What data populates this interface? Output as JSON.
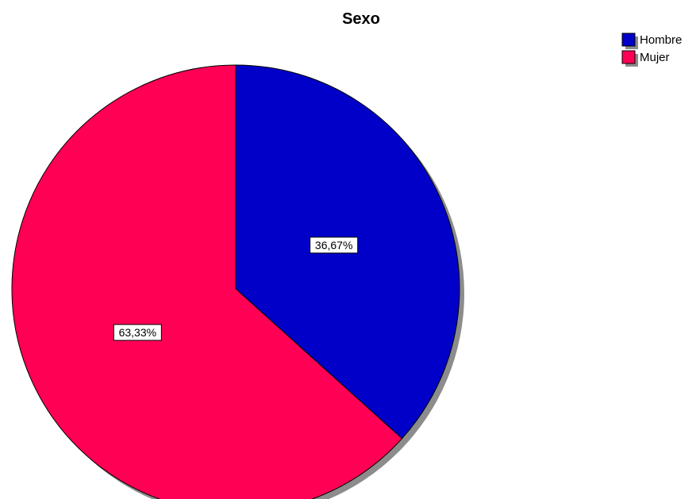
{
  "chart_data": {
    "type": "pie",
    "title": "Sexo",
    "categories": [
      "Hombre",
      "Mujer"
    ],
    "values": [
      36.67,
      63.33
    ],
    "value_labels": [
      "36,67%",
      "63,33%"
    ],
    "colors": [
      "#0000C8",
      "#FF0055"
    ],
    "legend": {
      "placement": "top-right",
      "entries": [
        "Hombre",
        "Mujer"
      ]
    },
    "start_angle": "12 o'clock",
    "direction": "clockwise"
  }
}
